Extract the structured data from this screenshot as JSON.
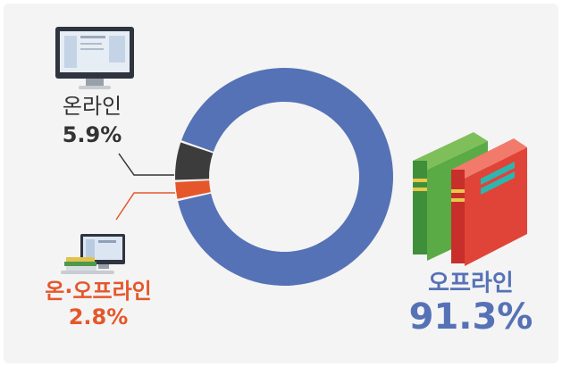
{
  "chart_data": {
    "type": "donut",
    "categories": [
      "온라인",
      "온·오프라인",
      "오프라인"
    ],
    "values": [
      5.9,
      2.8,
      91.3
    ],
    "value_labels": [
      "5.9%",
      "2.8%",
      "91.3%"
    ],
    "colors": [
      "#3c3c3c",
      "#e5572b",
      "#5672b6"
    ]
  }
}
